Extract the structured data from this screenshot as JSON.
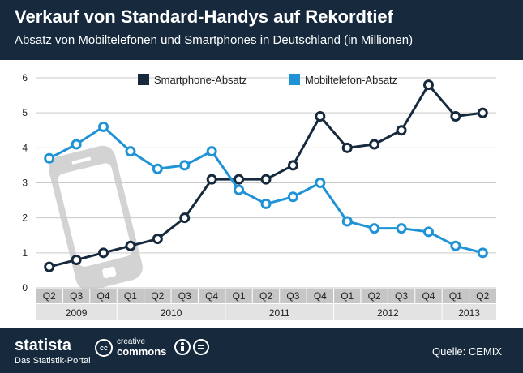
{
  "header": {
    "title": "Verkauf von Standard-Handys auf Rekordtief",
    "subtitle": "Absatz von Mobiltelefonen und Smartphones in Deutschland (in Millionen)"
  },
  "footer": {
    "brand": "statista",
    "brand_sub": "Das Statistik-Portal",
    "cc_small": "creative",
    "cc_big": "commons",
    "cc_mark": "cc",
    "source": "Quelle: CEMIX"
  },
  "chart_data": {
    "type": "line",
    "title": "Verkauf von Standard-Handys auf Rekordtief",
    "subtitle": "Absatz von Mobiltelefonen und Smartphones in Deutschland (in Millionen)",
    "categories": [
      "Q2",
      "Q3",
      "Q4",
      "Q1",
      "Q2",
      "Q3",
      "Q4",
      "Q1",
      "Q2",
      "Q3",
      "Q4",
      "Q1",
      "Q2",
      "Q3",
      "Q4",
      "Q1",
      "Q2"
    ],
    "year_groups": [
      {
        "label": "2009",
        "start": 0,
        "end": 2
      },
      {
        "label": "2010",
        "start": 3,
        "end": 6
      },
      {
        "label": "2011",
        "start": 7,
        "end": 10
      },
      {
        "label": "2012",
        "start": 11,
        "end": 14
      },
      {
        "label": "2013",
        "start": 15,
        "end": 16
      }
    ],
    "series": [
      {
        "name": "Smartphone-Absatz",
        "color": "#16293d",
        "values": [
          0.6,
          0.8,
          1.0,
          1.2,
          1.4,
          2.0,
          3.1,
          3.1,
          3.1,
          3.5,
          4.9,
          4.0,
          4.1,
          4.5,
          5.8,
          4.9,
          5.0
        ]
      },
      {
        "name": "Mobiltelefon-Absatz",
        "color": "#1f93d6",
        "values": [
          3.7,
          4.1,
          4.6,
          3.9,
          3.4,
          3.5,
          3.9,
          2.8,
          2.4,
          2.6,
          3.0,
          1.9,
          1.7,
          1.7,
          1.6,
          1.2,
          1.0
        ]
      }
    ],
    "yticks": [
      0,
      1,
      2,
      3,
      4,
      5,
      6
    ],
    "ylim": [
      0,
      6
    ],
    "grid": true,
    "legend_placement": "top-center",
    "icon": "mobile-phone-icon"
  }
}
